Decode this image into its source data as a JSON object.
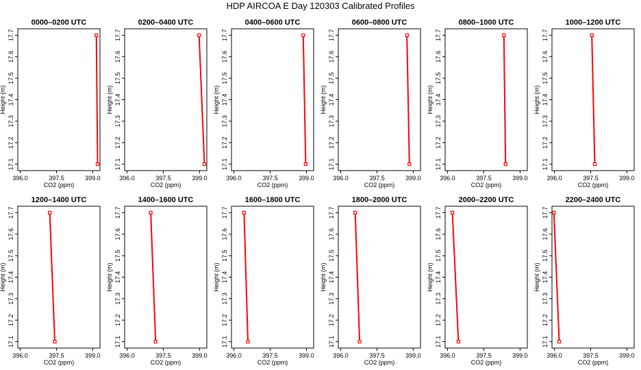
{
  "title": "HDP AIRCOA E  Day 120303  Calibrated Profiles",
  "colors": {
    "series": "#ff0000",
    "axis": "#000000",
    "background": "#ffffff"
  },
  "chart_data": [
    {
      "type": "line",
      "title": "0000–0200 UTC",
      "xlabel": "CO2 (ppm)",
      "ylabel": "Height (m)",
      "xlim": [
        395.9,
        399.3
      ],
      "ylim": [
        17.07,
        17.73
      ],
      "xticks": [
        "396.0",
        "397.5",
        "399.0"
      ],
      "yticks": [
        "17.1",
        "17.2",
        "17.3",
        "17.4",
        "17.5",
        "17.6",
        "17.7"
      ],
      "points": [
        {
          "co2": 399.15,
          "height": 17.7
        },
        {
          "co2": 399.2,
          "height": 17.1
        }
      ]
    },
    {
      "type": "line",
      "title": "0200–0400 UTC",
      "xlabel": "CO2 (ppm)",
      "ylabel": "Height (m)",
      "xlim": [
        395.9,
        399.3
      ],
      "ylim": [
        17.07,
        17.73
      ],
      "xticks": [
        "396.0",
        "397.5",
        "399.0"
      ],
      "yticks": [
        "17.1",
        "17.2",
        "17.3",
        "17.4",
        "17.5",
        "17.6",
        "17.7"
      ],
      "points": [
        {
          "co2": 398.98,
          "height": 17.7
        },
        {
          "co2": 399.2,
          "height": 17.1
        }
      ]
    },
    {
      "type": "line",
      "title": "0400–0600 UTC",
      "xlabel": "CO2 (ppm)",
      "ylabel": "Height (m)",
      "xlim": [
        395.9,
        399.3
      ],
      "ylim": [
        17.07,
        17.73
      ],
      "xticks": [
        "396.0",
        "397.5",
        "399.0"
      ],
      "yticks": [
        "17.1",
        "17.2",
        "17.3",
        "17.4",
        "17.5",
        "17.6",
        "17.7"
      ],
      "points": [
        {
          "co2": 398.87,
          "height": 17.7
        },
        {
          "co2": 398.97,
          "height": 17.1
        }
      ]
    },
    {
      "type": "line",
      "title": "0600–0800 UTC",
      "xlabel": "CO2 (ppm)",
      "ylabel": "Height (m)",
      "xlim": [
        395.9,
        399.3
      ],
      "ylim": [
        17.07,
        17.73
      ],
      "xticks": [
        "396.0",
        "397.5",
        "399.0"
      ],
      "yticks": [
        "17.1",
        "17.2",
        "17.3",
        "17.4",
        "17.5",
        "17.6",
        "17.7"
      ],
      "points": [
        {
          "co2": 398.74,
          "height": 17.7
        },
        {
          "co2": 398.84,
          "height": 17.1
        }
      ]
    },
    {
      "type": "line",
      "title": "0800–1000 UTC",
      "xlabel": "CO2 (ppm)",
      "ylabel": "Height (m)",
      "xlim": [
        395.9,
        399.3
      ],
      "ylim": [
        17.07,
        17.73
      ],
      "xticks": [
        "396.0",
        "397.5",
        "399.0"
      ],
      "yticks": [
        "17.1",
        "17.2",
        "17.3",
        "17.4",
        "17.5",
        "17.6",
        "17.7"
      ],
      "points": [
        {
          "co2": 398.33,
          "height": 17.7
        },
        {
          "co2": 398.4,
          "height": 17.1
        }
      ]
    },
    {
      "type": "line",
      "title": "1000–1200 UTC",
      "xlabel": "CO2 (ppm)",
      "ylabel": "Height (m)",
      "xlim": [
        395.9,
        399.3
      ],
      "ylim": [
        17.07,
        17.73
      ],
      "xticks": [
        "396.0",
        "397.5",
        "399.0"
      ],
      "yticks": [
        "17.1",
        "17.2",
        "17.3",
        "17.4",
        "17.5",
        "17.6",
        "17.7"
      ],
      "points": [
        {
          "co2": 397.55,
          "height": 17.7
        },
        {
          "co2": 397.67,
          "height": 17.1
        }
      ]
    },
    {
      "type": "line",
      "title": "1200–1400 UTC",
      "xlabel": "CO2 (ppm)",
      "ylabel": "Height (m)",
      "xlim": [
        395.9,
        399.3
      ],
      "ylim": [
        17.07,
        17.73
      ],
      "xticks": [
        "396.0",
        "397.5",
        "399.0"
      ],
      "yticks": [
        "17.1",
        "17.2",
        "17.3",
        "17.4",
        "17.5",
        "17.6",
        "17.7"
      ],
      "points": [
        {
          "co2": 397.22,
          "height": 17.7
        },
        {
          "co2": 397.43,
          "height": 17.1
        }
      ]
    },
    {
      "type": "line",
      "title": "1400–1600 UTC",
      "xlabel": "CO2 (ppm)",
      "ylabel": "Height (m)",
      "xlim": [
        395.9,
        399.3
      ],
      "ylim": [
        17.07,
        17.73
      ],
      "xticks": [
        "396.0",
        "397.5",
        "399.0"
      ],
      "yticks": [
        "17.1",
        "17.2",
        "17.3",
        "17.4",
        "17.5",
        "17.6",
        "17.7"
      ],
      "points": [
        {
          "co2": 396.98,
          "height": 17.7
        },
        {
          "co2": 397.18,
          "height": 17.1
        }
      ]
    },
    {
      "type": "line",
      "title": "1600–1800 UTC",
      "xlabel": "CO2 (ppm)",
      "ylabel": "Height (m)",
      "xlim": [
        395.9,
        399.3
      ],
      "ylim": [
        17.07,
        17.73
      ],
      "xticks": [
        "396.0",
        "397.5",
        "399.0"
      ],
      "yticks": [
        "17.1",
        "17.2",
        "17.3",
        "17.4",
        "17.5",
        "17.6",
        "17.7"
      ],
      "points": [
        {
          "co2": 396.42,
          "height": 17.7
        },
        {
          "co2": 396.58,
          "height": 17.1
        }
      ]
    },
    {
      "type": "line",
      "title": "1800–2000 UTC",
      "xlabel": "CO2 (ppm)",
      "ylabel": "Height (m)",
      "xlim": [
        395.9,
        399.3
      ],
      "ylim": [
        17.07,
        17.73
      ],
      "xticks": [
        "396.0",
        "397.5",
        "399.0"
      ],
      "yticks": [
        "17.1",
        "17.2",
        "17.3",
        "17.4",
        "17.5",
        "17.6",
        "17.7"
      ],
      "points": [
        {
          "co2": 396.6,
          "height": 17.7
        },
        {
          "co2": 396.78,
          "height": 17.1
        }
      ]
    },
    {
      "type": "line",
      "title": "2000–2200 UTC",
      "xlabel": "CO2 (ppm)",
      "ylabel": "Height (m)",
      "xlim": [
        395.9,
        399.3
      ],
      "ylim": [
        17.07,
        17.73
      ],
      "xticks": [
        "396.0",
        "397.5",
        "399.0"
      ],
      "yticks": [
        "17.1",
        "17.2",
        "17.3",
        "17.4",
        "17.5",
        "17.6",
        "17.7"
      ],
      "points": [
        {
          "co2": 396.2,
          "height": 17.7
        },
        {
          "co2": 396.45,
          "height": 17.1
        }
      ]
    },
    {
      "type": "line",
      "title": "2200–2400 UTC",
      "xlabel": "CO2 (ppm)",
      "ylabel": "Height (m)",
      "xlim": [
        395.9,
        399.3
      ],
      "ylim": [
        17.07,
        17.73
      ],
      "xticks": [
        "396.0",
        "397.5",
        "399.0"
      ],
      "yticks": [
        "17.1",
        "17.2",
        "17.3",
        "17.4",
        "17.5",
        "17.6",
        "17.7"
      ],
      "points": [
        {
          "co2": 395.98,
          "height": 17.7
        },
        {
          "co2": 396.2,
          "height": 17.1
        }
      ]
    }
  ]
}
